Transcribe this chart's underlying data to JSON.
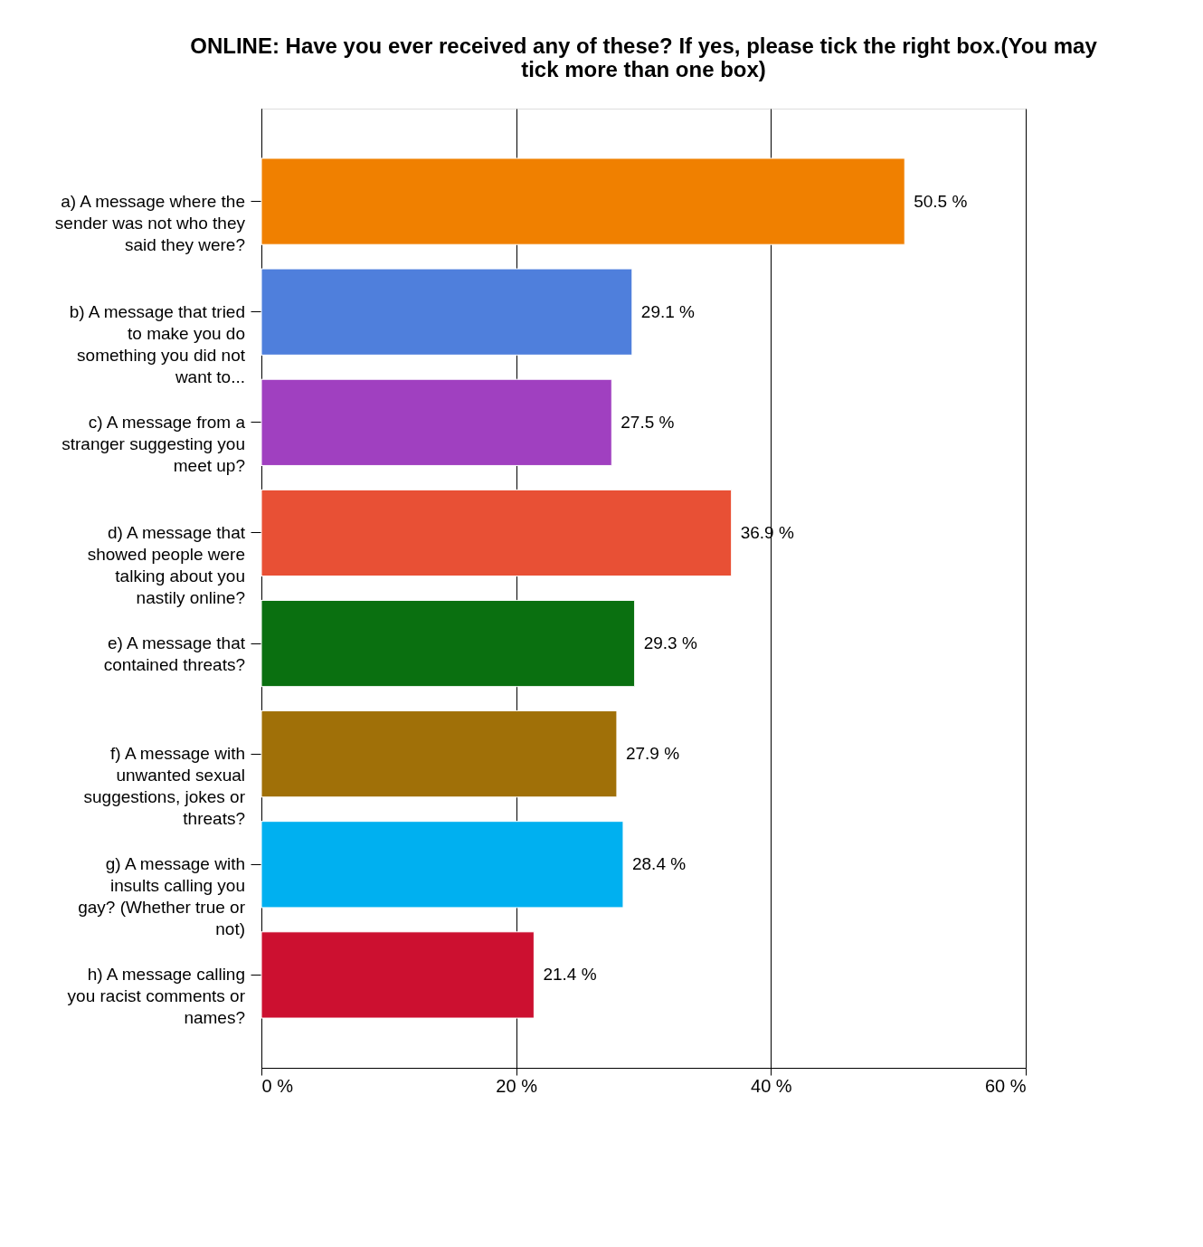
{
  "chart_data": {
    "type": "bar",
    "orientation": "horizontal",
    "title": "ONLINE: Have you ever received any of these? If yes, please tick the right box.(You may tick more than one box)",
    "categories": [
      "a) A message where the sender was not who they said they were?",
      "b) A message that tried to make you do something you did not want to...",
      "c) A message from a stranger suggesting you meet up?",
      "d) A message that showed people were talking about you nastily online?",
      "e) A message that contained threats?",
      "f) A message with unwanted sexual suggestions, jokes or threats?",
      "g) A message with insults calling you gay? (Whether true or not)",
      "h) A message calling you racist comments or names?"
    ],
    "values": [
      50.5,
      29.1,
      27.5,
      36.9,
      29.3,
      27.9,
      28.4,
      21.4
    ],
    "colors": [
      "#f08000",
      "#4f7fdc",
      "#a040c0",
      "#e85035",
      "#0a7010",
      "#a07008",
      "#00b0f0",
      "#cc1030"
    ],
    "value_labels": [
      "50.5 %",
      "29.1 %",
      "27.5 %",
      "36.9 %",
      "29.3 %",
      "27.9 %",
      "28.4 %",
      "21.4 %"
    ],
    "xlim": [
      0,
      60
    ],
    "xticks": [
      {
        "value": 0,
        "label": "0 %"
      },
      {
        "value": 20,
        "label": "20 %"
      },
      {
        "value": 40,
        "label": "40 %"
      },
      {
        "value": 60,
        "label": "60 %"
      }
    ],
    "grid": "x"
  }
}
